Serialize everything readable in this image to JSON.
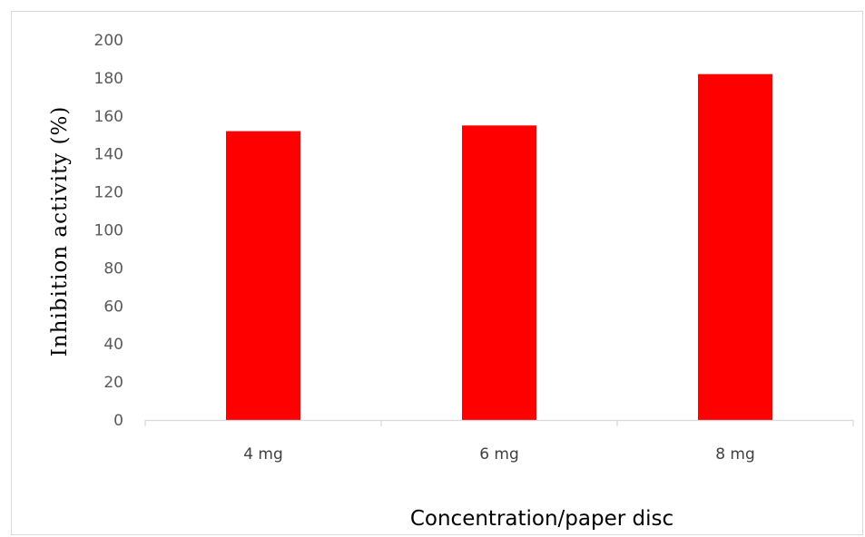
{
  "chart_data": {
    "type": "bar",
    "categories": [
      "4 mg",
      "6 mg",
      "8 mg"
    ],
    "values": [
      152,
      155,
      182
    ],
    "ylabel": "Inhibition  activity  (%)",
    "xlabel": "Concentration/paper disc",
    "ylim": [
      0,
      200
    ],
    "yticks": [
      0,
      20,
      40,
      60,
      80,
      100,
      120,
      140,
      160,
      180,
      200
    ],
    "grid": false,
    "legend": "none",
    "bar_color": "#ff0000",
    "axis_color": "#d9d9d9"
  }
}
